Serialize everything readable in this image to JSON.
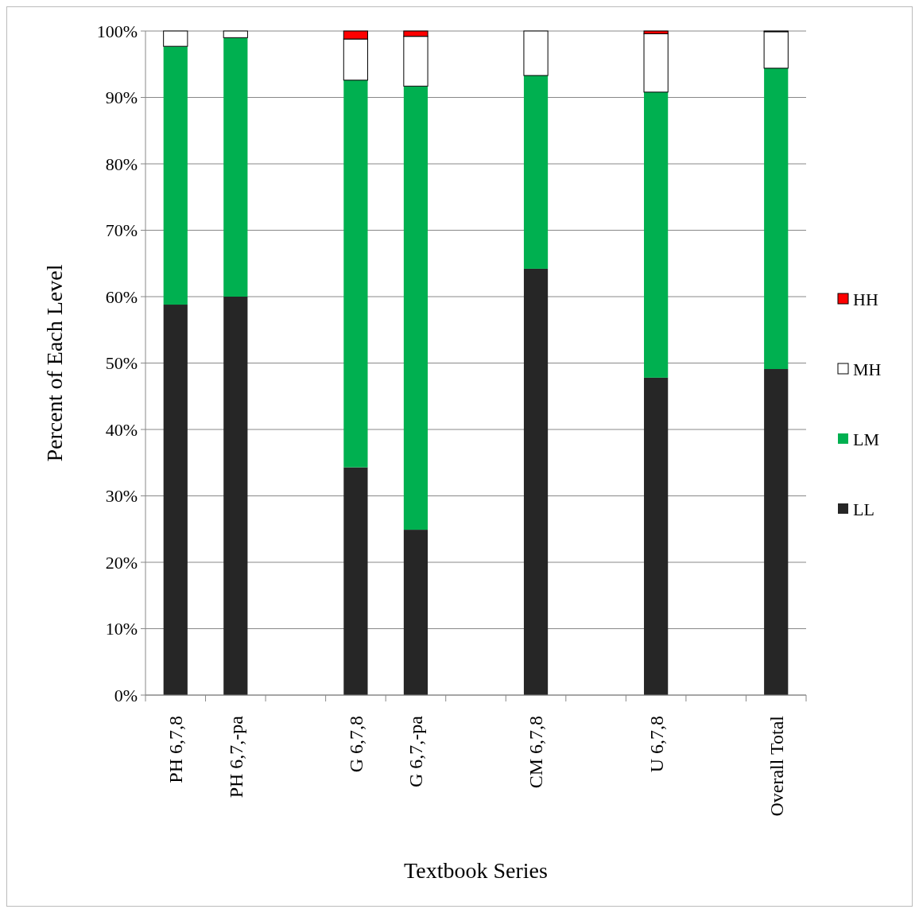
{
  "chart_data": {
    "type": "bar",
    "stacked": true,
    "xlabel": "Textbook Series",
    "ylabel": "Percent of Each Level",
    "categories": [
      "PH 6,7,8",
      "PH 6,7,-pa",
      null,
      "G 6,7,8",
      "G 6,7,-pa",
      null,
      "CM 6,7,8",
      null,
      "U 6,7,8",
      null,
      "Overall Total"
    ],
    "series": [
      {
        "name": "LL",
        "color": "#262626",
        "values": [
          58.8,
          60.0,
          null,
          34.3,
          24.9,
          null,
          64.2,
          null,
          47.8,
          null,
          49.1
        ]
      },
      {
        "name": "LM",
        "color": "#00b050",
        "values": [
          38.9,
          39.0,
          null,
          58.3,
          66.8,
          null,
          29.1,
          null,
          43.0,
          null,
          45.3
        ]
      },
      {
        "name": "MH",
        "color": "#ffffff",
        "values": [
          2.3,
          1.0,
          null,
          6.2,
          7.5,
          null,
          6.7,
          null,
          8.8,
          null,
          5.5
        ]
      },
      {
        "name": "HH",
        "color": "#ff0000",
        "values": [
          0,
          0,
          null,
          1.2,
          0.8,
          null,
          0,
          null,
          0.4,
          null,
          0.1
        ]
      }
    ],
    "ylim": [
      0,
      100
    ],
    "yticks": [
      {
        "value": 0,
        "label": "0%"
      },
      {
        "value": 10,
        "label": "10%"
      },
      {
        "value": 20,
        "label": "20%"
      },
      {
        "value": 30,
        "label": "30%"
      },
      {
        "value": 40,
        "label": "40%"
      },
      {
        "value": 50,
        "label": "50%"
      },
      {
        "value": 60,
        "label": "60%"
      },
      {
        "value": 70,
        "label": "70%"
      },
      {
        "value": 80,
        "label": "80%"
      },
      {
        "value": 90,
        "label": "90%"
      },
      {
        "value": 100,
        "label": "100%"
      }
    ],
    "grid": "y",
    "legend": "right"
  }
}
